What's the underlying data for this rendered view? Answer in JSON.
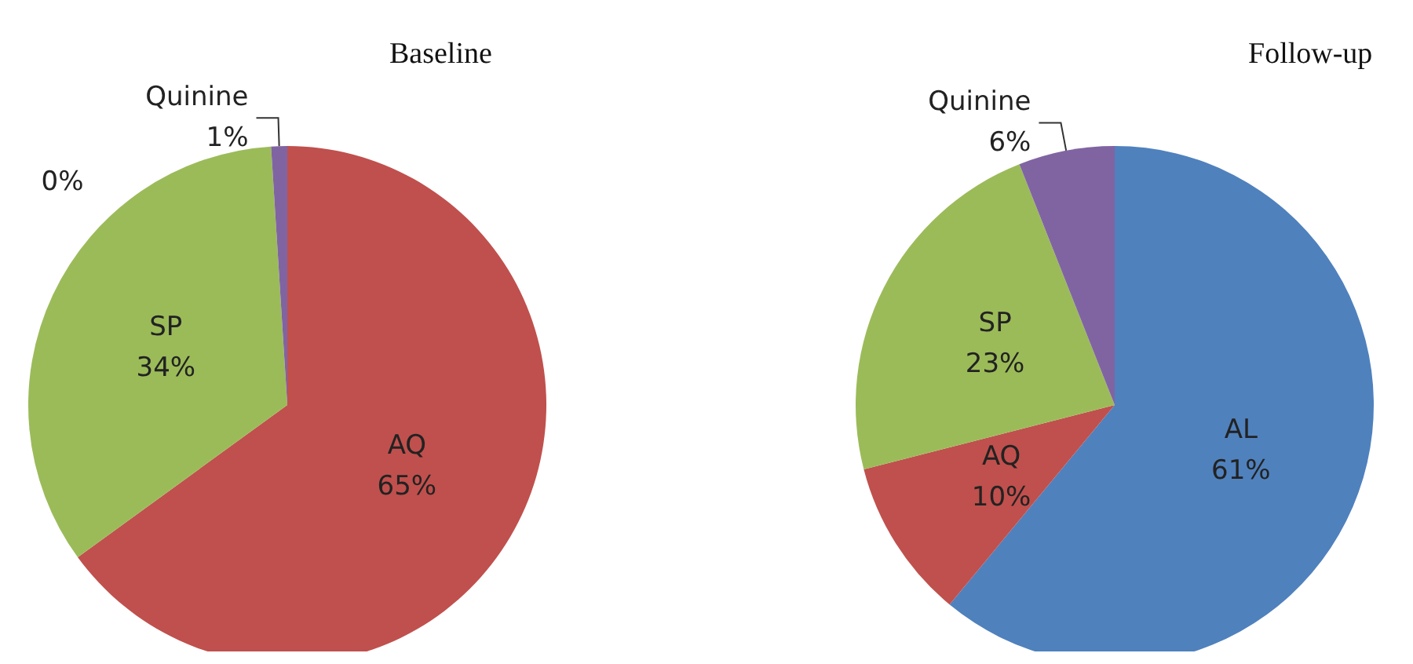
{
  "chart_data": [
    {
      "type": "pie",
      "title": "Baseline",
      "categories": [
        null,
        "AQ",
        "SP",
        "Quinine"
      ],
      "values": [
        0,
        65,
        34,
        1
      ],
      "value_labels": [
        "0%",
        "65%",
        "34%",
        "1%"
      ],
      "colors": [
        "#4f81bd",
        "#c0504d",
        "#9bbb59",
        "#8064a2"
      ]
    },
    {
      "type": "pie",
      "title": "Follow-up",
      "categories": [
        "AL",
        "AQ",
        "SP",
        "Quinine"
      ],
      "values": [
        61,
        10,
        23,
        6
      ],
      "value_labels": [
        "61%",
        "10%",
        "23%",
        "6%"
      ],
      "colors": [
        "#4f81bd",
        "#c0504d",
        "#9bbb59",
        "#8064a2"
      ]
    }
  ]
}
